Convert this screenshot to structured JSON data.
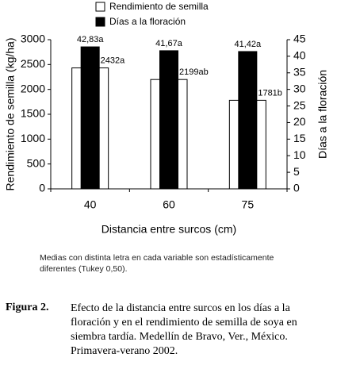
{
  "chart_data": {
    "type": "bar",
    "categories": [
      "40",
      "60",
      "75"
    ],
    "x_label": "Distancia entre surcos (cm)",
    "y_label": "Rendimiento de semilla (kg/ha)",
    "y2_label": "Días a la floración",
    "ylim": [
      0,
      3000
    ],
    "yticks": [
      0,
      500,
      1000,
      1500,
      2000,
      2500,
      3000
    ],
    "y2lim": [
      0,
      45
    ],
    "y2ticks": [
      0,
      5,
      10,
      15,
      20,
      25,
      30,
      35,
      40,
      45
    ],
    "series": [
      {
        "name": "Rendimiento de semilla",
        "color": "#ffffff",
        "values": [
          2432,
          2199,
          1781
        ],
        "value_labels": [
          "2432a",
          "2199ab",
          "1781b"
        ]
      },
      {
        "name": "Días a la floración",
        "color": "#000000",
        "axis": "y2",
        "values": [
          42.83,
          41.67,
          41.42
        ],
        "value_labels": [
          "42,83a",
          "41,67a",
          "41,42a"
        ]
      }
    ],
    "note": "Medias con distinta letra en cada variable son estadísticamente diferentes (Tukey 0,50).",
    "figure_label": "Figura 2.",
    "caption": "Efecto de la distancia entre surcos en los días a la floración y en el rendimiento de semilla de soya en siembra tardía. Medellín de Bravo, Ver., México. Primavera-verano 2002."
  }
}
